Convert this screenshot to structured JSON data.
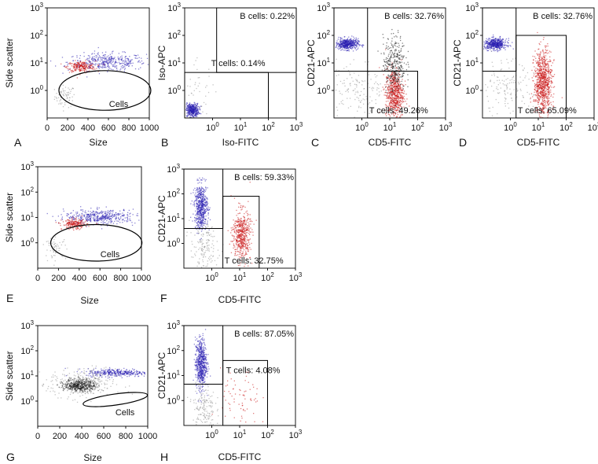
{
  "figure": {
    "description": "Flow cytometry gating panels A-H"
  },
  "colors": {
    "blue": "#2a1fb0",
    "red": "#c81414",
    "grey": "#8a8a8a",
    "black": "#151515"
  },
  "chart_data": [
    {
      "id": "A",
      "type": "scatter",
      "panel_label": "A",
      "xlabel": "Size",
      "ylabel": "Side scatter",
      "xscale": "linear",
      "xlim": [
        0,
        1000
      ],
      "xticks": [
        "0",
        "200",
        "400",
        "600",
        "800",
        "1000"
      ],
      "yscale": "log",
      "ylim": [
        0.1,
        1000
      ],
      "yticks": [
        "10^0",
        "10^1",
        "10^2",
        "10^3"
      ],
      "gate": {
        "type": "ellipse",
        "label": "Cells",
        "cx": 565,
        "cy": 1.0,
        "rx_size": 450,
        "ry_decades": 0.72
      },
      "populations": [
        {
          "name": "debris",
          "color": "grey",
          "cx": 170,
          "cy": -0.2,
          "sx": 50,
          "sy": 0.2,
          "n": 70
        },
        {
          "name": "events",
          "color": "blue",
          "cx": 580,
          "cy": 1.05,
          "sx": 190,
          "sy": 0.16,
          "n": 380
        },
        {
          "name": "T-enriched",
          "color": "red",
          "cx": 330,
          "cy": 0.88,
          "sx": 70,
          "sy": 0.1,
          "n": 230
        }
      ]
    },
    {
      "id": "B",
      "type": "scatter",
      "panel_label": "B",
      "xlabel": "Iso-FITC",
      "ylabel": "Iso-APC",
      "xscale": "log",
      "xlim": [
        0.1,
        1000
      ],
      "xticks": [
        "10^0",
        "10^1",
        "10^2",
        "10^3"
      ],
      "yscale": "log",
      "ylim": [
        0.1,
        1000
      ],
      "yticks": [
        "10^0",
        "10^1",
        "10^2",
        "10^3"
      ],
      "gates": [
        {
          "type": "rect",
          "x": [
            1.4,
            1000
          ],
          "y": [
            4.5,
            1000
          ],
          "label": "B cells: 0.22%"
        },
        {
          "type": "rect",
          "x": [
            0.1,
            100
          ],
          "y": [
            0.1,
            4.5
          ],
          "label": "T cells: 0.14%"
        }
      ],
      "populations": [
        {
          "name": "negative",
          "color": "blue",
          "cx": -0.75,
          "cy": -0.7,
          "sx": 0.12,
          "sy": 0.12,
          "n": 420
        },
        {
          "name": "background",
          "color": "grey",
          "cx": -0.5,
          "cy": 0.0,
          "sx": 0.3,
          "sy": 0.5,
          "n": 40
        }
      ]
    },
    {
      "id": "C",
      "type": "scatter",
      "panel_label": "C",
      "xlabel": "CD5-FITC",
      "ylabel": "CD21-APC",
      "xscale": "log",
      "xlim": [
        0.1,
        1000
      ],
      "xticks": [
        "10^0",
        "10^1",
        "10^2",
        "10^3"
      ],
      "yscale": "log",
      "ylim": [
        0.1,
        1000
      ],
      "yticks": [
        "10^0",
        "10^1",
        "10^2",
        "10^3"
      ],
      "gates": [
        {
          "type": "rect",
          "x": [
            0.1,
            1.6
          ],
          "y": [
            5,
            1000
          ],
          "label": "B cells: 32.76%"
        },
        {
          "type": "rect",
          "x": [
            1.6,
            100
          ],
          "y": [
            0.1,
            5
          ],
          "label": "T cells: 49.26%"
        }
      ],
      "populations": [
        {
          "name": "B cells",
          "color": "blue",
          "cx": -0.55,
          "cy": 1.7,
          "sx": 0.2,
          "sy": 0.1,
          "n": 480
        },
        {
          "name": "T cells",
          "color": "red",
          "cx": 1.15,
          "cy": -0.1,
          "sx": 0.16,
          "sy": 0.45,
          "n": 650
        },
        {
          "name": "ungated",
          "color": "black",
          "cx": 1.15,
          "cy": 1.0,
          "sx": 0.2,
          "sy": 0.5,
          "n": 330
        },
        {
          "name": "background",
          "color": "grey",
          "cx": -0.2,
          "cy": 0.0,
          "sx": 0.5,
          "sy": 0.55,
          "n": 150
        }
      ]
    },
    {
      "id": "D",
      "type": "scatter",
      "panel_label": "D",
      "xlabel": "CD5-FITC",
      "ylabel": "CD21-APC",
      "xscale": "log",
      "xlim": [
        0.1,
        1000
      ],
      "xticks": [
        "10^0",
        "10^1",
        "10^2",
        "10^3"
      ],
      "yscale": "log",
      "ylim": [
        0.1,
        1000
      ],
      "yticks": [
        "10^0",
        "10^1",
        "10^2",
        "10^3"
      ],
      "gates": [
        {
          "type": "rect",
          "x": [
            0.1,
            1.6
          ],
          "y": [
            5,
            1000
          ],
          "label": "B cells: 32.76%"
        },
        {
          "type": "rect",
          "x": [
            1.6,
            100
          ],
          "y": [
            0.1,
            100
          ],
          "label": "T cells: 65.09%"
        }
      ],
      "populations": [
        {
          "name": "B cells",
          "color": "blue",
          "cx": -0.55,
          "cy": 1.7,
          "sx": 0.2,
          "sy": 0.1,
          "n": 480
        },
        {
          "name": "T cells",
          "color": "red",
          "cx": 1.15,
          "cy": 0.3,
          "sx": 0.16,
          "sy": 0.6,
          "n": 850
        },
        {
          "name": "background",
          "color": "grey",
          "cx": -0.2,
          "cy": 0.0,
          "sx": 0.5,
          "sy": 0.55,
          "n": 150
        }
      ]
    },
    {
      "id": "E",
      "type": "scatter",
      "panel_label": "E",
      "xlabel": "Size",
      "ylabel": "Side scatter",
      "xscale": "linear",
      "xlim": [
        0,
        1000
      ],
      "xticks": [
        "0",
        "200",
        "400",
        "600",
        "800",
        "1000"
      ],
      "yscale": "log",
      "ylim": [
        0.1,
        1000
      ],
      "yticks": [
        "10^0",
        "10^1",
        "10^2",
        "10^3"
      ],
      "gate": {
        "type": "ellipse",
        "label": "Cells",
        "cx": 565,
        "cy": 1.0,
        "rx_size": 440,
        "ry_decades": 0.72
      },
      "populations": [
        {
          "name": "debris",
          "color": "grey",
          "cx": 170,
          "cy": -0.2,
          "sx": 50,
          "sy": 0.2,
          "n": 60
        },
        {
          "name": "events",
          "color": "blue",
          "cx": 600,
          "cy": 1.05,
          "sx": 170,
          "sy": 0.14,
          "n": 420
        },
        {
          "name": "T-enriched",
          "color": "red",
          "cx": 350,
          "cy": 0.75,
          "sx": 60,
          "sy": 0.1,
          "n": 200
        }
      ]
    },
    {
      "id": "F",
      "type": "scatter",
      "panel_label": "F",
      "xlabel": "CD5-FITC",
      "ylabel": "CD21-APC",
      "xscale": "log",
      "xlim": [
        0.1,
        1000
      ],
      "xticks": [
        "10^0",
        "10^1",
        "10^2",
        "10^3"
      ],
      "yscale": "log",
      "ylim": [
        0.1,
        1000
      ],
      "yticks": [
        "10^0",
        "10^1",
        "10^2",
        "10^3"
      ],
      "gates": [
        {
          "type": "rect",
          "x": [
            0.1,
            2.5
          ],
          "y": [
            4,
            1000
          ],
          "label": "B cells: 59.33%"
        },
        {
          "type": "rect",
          "x": [
            2.5,
            50
          ],
          "y": [
            0.1,
            80
          ],
          "label": "T cells: 32.75%"
        }
      ],
      "populations": [
        {
          "name": "B cells",
          "color": "blue",
          "cx": -0.4,
          "cy": 1.5,
          "sx": 0.12,
          "sy": 0.45,
          "n": 550
        },
        {
          "name": "T cells",
          "color": "red",
          "cx": 1.05,
          "cy": 0.35,
          "sx": 0.16,
          "sy": 0.5,
          "n": 520
        },
        {
          "name": "background",
          "color": "grey",
          "cx": -0.3,
          "cy": -0.2,
          "sx": 0.25,
          "sy": 0.5,
          "n": 150
        }
      ]
    },
    {
      "id": "G",
      "type": "scatter",
      "panel_label": "G",
      "xlabel": "Size",
      "ylabel": "Side scatter",
      "xscale": "linear",
      "xlim": [
        0,
        1000
      ],
      "xticks": [
        "0",
        "200",
        "400",
        "600",
        "800",
        "1000"
      ],
      "yscale": "log",
      "ylim": [
        0.1,
        1000
      ],
      "yticks": [
        "10^0",
        "10^1",
        "10^2",
        "10^3"
      ],
      "gate": {
        "type": "ellipse",
        "label": "Cells",
        "cx": 705,
        "cy": 1.15,
        "rx_size": 295,
        "ry_decades": 0.22,
        "angle": -8
      },
      "populations": [
        {
          "name": "ungated",
          "color": "black",
          "cx": 380,
          "cy": 0.65,
          "sx": 70,
          "sy": 0.12,
          "n": 420
        },
        {
          "name": "scatter",
          "color": "grey",
          "cx": 400,
          "cy": 0.7,
          "sx": 150,
          "sy": 0.3,
          "n": 300
        },
        {
          "name": "gated",
          "color": "blue",
          "cx": 720,
          "cy": 1.15,
          "sx": 140,
          "sy": 0.08,
          "n": 320
        }
      ]
    },
    {
      "id": "H",
      "type": "scatter",
      "panel_label": "H",
      "xlabel": "CD5-FITC",
      "ylabel": "CD21-APC",
      "xscale": "log",
      "xlim": [
        0.1,
        1000
      ],
      "xticks": [
        "10^0",
        "10^1",
        "10^2",
        "10^3"
      ],
      "yscale": "log",
      "ylim": [
        0.1,
        1000
      ],
      "yticks": [
        "10^0",
        "10^1",
        "10^2",
        "10^3"
      ],
      "gates": [
        {
          "type": "rect",
          "x": [
            0.1,
            2.5
          ],
          "y": [
            4.5,
            1000
          ],
          "label": "B cells: 87.05%"
        },
        {
          "type": "rect",
          "x": [
            2.5,
            100
          ],
          "y": [
            0.1,
            40
          ],
          "label": "T cells: 4.08%"
        }
      ],
      "populations": [
        {
          "name": "B cells",
          "color": "blue",
          "cx": -0.4,
          "cy": 1.5,
          "sx": 0.1,
          "sy": 0.5,
          "n": 600
        },
        {
          "name": "background",
          "color": "grey",
          "cx": -0.3,
          "cy": -0.3,
          "sx": 0.2,
          "sy": 0.5,
          "n": 160
        },
        {
          "name": "T cells",
          "color": "red",
          "cx": 1.0,
          "cy": 0.0,
          "sx": 0.35,
          "sy": 0.6,
          "n": 70
        }
      ]
    }
  ]
}
